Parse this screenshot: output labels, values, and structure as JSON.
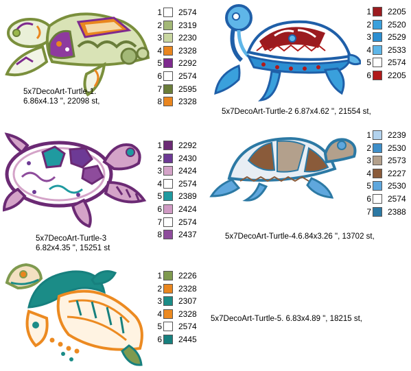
{
  "designs": [
    {
      "caption": [
        "5x7DecoArt-Turtle-1.",
        "6.86x4.13 \", 22098 st,"
      ],
      "palette": [
        {
          "n": "1",
          "code": "2574",
          "color": "#ffffff"
        },
        {
          "n": "2",
          "code": "2319",
          "color": "#a3b877"
        },
        {
          "n": "3",
          "code": "2230",
          "color": "#c9d7a1"
        },
        {
          "n": "4",
          "code": "2328",
          "color": "#e9861f"
        },
        {
          "n": "5",
          "code": "2292",
          "color": "#7e2a8e"
        },
        {
          "n": "6",
          "code": "2574",
          "color": "#ffffff"
        },
        {
          "n": "7",
          "code": "2595",
          "color": "#6a7d3a"
        },
        {
          "n": "8",
          "code": "2328",
          "color": "#e9861f"
        }
      ]
    },
    {
      "caption": [
        "5x7DecoArt-Turtle-2  6.87x4.62 \", 21554 st,"
      ],
      "palette": [
        {
          "n": "1",
          "code": "2205",
          "color": "#9b1b1f"
        },
        {
          "n": "2",
          "code": "2520",
          "color": "#3aa0dc"
        },
        {
          "n": "3",
          "code": "2529",
          "color": "#2c8fd2"
        },
        {
          "n": "4",
          "code": "2533",
          "color": "#5fb6e8"
        },
        {
          "n": "5",
          "code": "2574",
          "color": "#ffffff"
        },
        {
          "n": "6",
          "code": "2205",
          "color": "#b01a1a"
        }
      ]
    },
    {
      "caption": [
        "5x7DecoArt-Turtle-3",
        "6.82x4.35 \", 15251 st"
      ],
      "palette": [
        {
          "n": "1",
          "code": "2292",
          "color": "#6b2a74"
        },
        {
          "n": "2",
          "code": "2430",
          "color": "#6d3a95"
        },
        {
          "n": "3",
          "code": "2424",
          "color": "#d4a3c8"
        },
        {
          "n": "4",
          "code": "2574",
          "color": "#ffffff"
        },
        {
          "n": "5",
          "code": "2389",
          "color": "#1f9aa0"
        },
        {
          "n": "6",
          "code": "2424",
          "color": "#d09bc4"
        },
        {
          "n": "7",
          "code": "2574",
          "color": "#ffffff"
        },
        {
          "n": "8",
          "code": "2437",
          "color": "#8e4c9c"
        }
      ]
    },
    {
      "caption": [
        "5x7DecoArt-Turtle-4.6.84x3.26 \", 13702 st,"
      ],
      "palette": [
        {
          "n": "1",
          "code": "2239",
          "color": "#b3d3ee"
        },
        {
          "n": "2",
          "code": "2530",
          "color": "#3f8fc9"
        },
        {
          "n": "3",
          "code": "2573",
          "color": "#b3a08c"
        },
        {
          "n": "4",
          "code": "2227",
          "color": "#8a5b3a"
        },
        {
          "n": "5",
          "code": "2530",
          "color": "#5fa7dd"
        },
        {
          "n": "6",
          "code": "2574",
          "color": "#ffffff"
        },
        {
          "n": "7",
          "code": "2388",
          "color": "#2c79a4"
        }
      ]
    },
    {
      "caption": [
        "5x7DecoArt-Turtle-5. 6.83x4.89 \", 18215 st,"
      ],
      "palette": [
        {
          "n": "1",
          "code": "2226",
          "color": "#7f9a4f"
        },
        {
          "n": "2",
          "code": "2328",
          "color": "#e9861f"
        },
        {
          "n": "3",
          "code": "2307",
          "color": "#1b8c87"
        },
        {
          "n": "4",
          "code": "2328",
          "color": "#ec8a21"
        },
        {
          "n": "5",
          "code": "2574",
          "color": "#ffffff"
        },
        {
          "n": "6",
          "code": "2445",
          "color": "#17807e"
        }
      ]
    }
  ]
}
